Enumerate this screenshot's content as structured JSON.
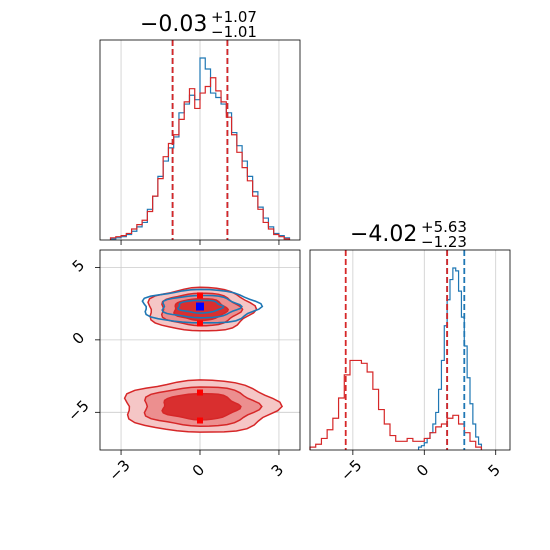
{
  "chart_data": [
    {
      "type": "histogram",
      "panel": "marginal-param-1",
      "title": {
        "value": "−0.03",
        "upper": "+1.07",
        "lower": "−1.01"
      },
      "xlim": [
        -3.8,
        3.8
      ],
      "grid": true,
      "quantile_lines": {
        "red": [
          -1.04,
          -0.03,
          1.04
        ],
        "blue": [
          -1.04,
          -0.03,
          1.04
        ]
      },
      "series": [
        {
          "color": "#1f77b4",
          "bin_edges": [
            -3.4,
            -3.2,
            -3.0,
            -2.8,
            -2.6,
            -2.4,
            -2.2,
            -2.0,
            -1.8,
            -1.6,
            -1.4,
            -1.2,
            -1.0,
            -0.8,
            -0.6,
            -0.4,
            -0.2,
            0.0,
            0.2,
            0.4,
            0.6,
            0.8,
            1.0,
            1.2,
            1.4,
            1.6,
            1.8,
            2.0,
            2.2,
            2.4,
            2.6,
            2.8,
            3.0,
            3.2,
            3.4
          ],
          "counts": [
            1,
            2,
            3,
            5,
            8,
            12,
            16,
            28,
            40,
            58,
            72,
            84,
            94,
            116,
            124,
            132,
            128,
            166,
            156,
            134,
            130,
            124,
            116,
            98,
            86,
            72,
            58,
            44,
            30,
            20,
            12,
            6,
            4,
            2
          ]
        },
        {
          "color": "#d62728",
          "bin_edges": [
            -3.4,
            -3.2,
            -3.0,
            -2.8,
            -2.6,
            -2.4,
            -2.2,
            -2.0,
            -1.8,
            -1.6,
            -1.4,
            -1.2,
            -1.0,
            -0.8,
            -0.6,
            -0.4,
            -0.2,
            0.0,
            0.2,
            0.4,
            0.6,
            0.8,
            1.0,
            1.2,
            1.4,
            1.6,
            1.8,
            2.0,
            2.2,
            2.4,
            2.6,
            2.8,
            3.0,
            3.2,
            3.4
          ],
          "counts": [
            2,
            3,
            4,
            6,
            10,
            14,
            18,
            26,
            40,
            56,
            76,
            88,
            96,
            110,
            126,
            138,
            120,
            134,
            140,
            148,
            136,
            126,
            112,
            96,
            80,
            66,
            54,
            40,
            28,
            16,
            10,
            5,
            3,
            1
          ]
        }
      ]
    },
    {
      "type": "contour",
      "panel": "2d-param-1-vs-param-2",
      "xlim": [
        -3.8,
        3.8
      ],
      "ylim": [
        -7.6,
        6.2
      ],
      "xticks": [
        "−3",
        "0",
        "3"
      ],
      "yticks": [
        "−5",
        "0",
        "5"
      ],
      "grid": true,
      "series": [
        {
          "color": "#1f77b4",
          "modes": [
            {
              "x": 0.0,
              "y": 2.3,
              "sx": 1.05,
              "sy": 0.55
            }
          ]
        },
        {
          "color": "#d62728",
          "modes": [
            {
              "x": 0.0,
              "y": 2.1,
              "sx": 1.0,
              "sy": 0.75
            },
            {
              "x": 0.0,
              "y": -4.6,
              "sx": 1.45,
              "sy": 0.9
            }
          ]
        }
      ]
    },
    {
      "type": "histogram",
      "panel": "marginal-param-2",
      "title": {
        "value": "−4.02",
        "upper": "+5.63",
        "lower": "−1.23"
      },
      "xlim": [
        -8.0,
        6.0
      ],
      "xticks": [
        "−5",
        "0",
        "5"
      ],
      "grid": true,
      "quantile_lines": {
        "red": [
          -5.5,
          1.6
        ],
        "blue": [
          1.6,
          2.8
        ]
      },
      "series": [
        {
          "color": "#1f77b4",
          "bin_edges": [
            -0.4,
            -0.2,
            0.0,
            0.2,
            0.4,
            0.6,
            0.8,
            1.0,
            1.2,
            1.4,
            1.6,
            1.8,
            2.0,
            2.2,
            2.4,
            2.6,
            2.8,
            3.0,
            3.2,
            3.4,
            3.6,
            3.8,
            4.0
          ],
          "counts": [
            2,
            3,
            5,
            8,
            12,
            18,
            26,
            42,
            62,
            86,
            104,
            118,
            126,
            124,
            110,
            92,
            72,
            50,
            32,
            18,
            9,
            4
          ]
        },
        {
          "color": "#d62728",
          "bin_edges": [
            -8.0,
            -7.6,
            -7.2,
            -6.8,
            -6.4,
            -6.0,
            -5.6,
            -5.2,
            -4.8,
            -4.4,
            -4.0,
            -3.6,
            -3.2,
            -2.8,
            -2.4,
            -2.0,
            -1.6,
            -1.2,
            -0.8,
            -0.4,
            0.0,
            0.4,
            0.8,
            1.2,
            1.6,
            2.0,
            2.4,
            2.8,
            3.2,
            3.6,
            4.0
          ],
          "counts": [
            2,
            4,
            8,
            14,
            22,
            36,
            52,
            62,
            62,
            60,
            54,
            42,
            28,
            18,
            10,
            6,
            6,
            8,
            6,
            6,
            8,
            12,
            16,
            18,
            22,
            24,
            18,
            12,
            6,
            2
          ]
        }
      ]
    }
  ]
}
